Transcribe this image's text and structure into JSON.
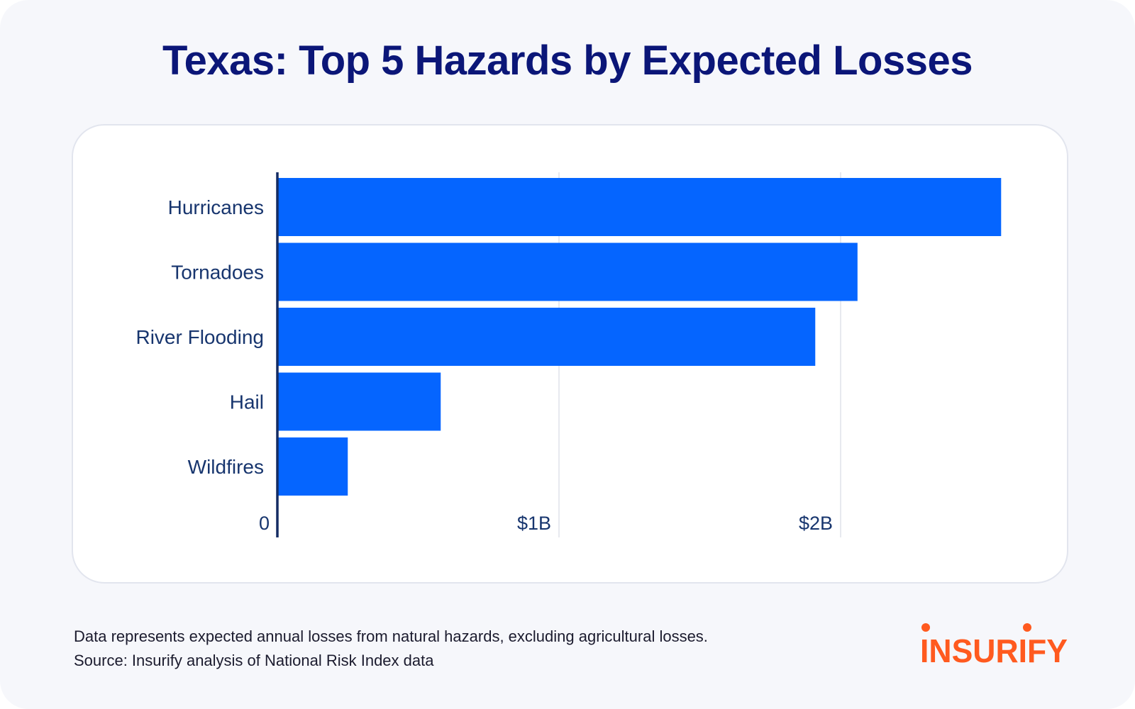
{
  "chart_data": {
    "type": "bar",
    "orientation": "horizontal",
    "title": "Texas: Top 5 Hazards by Expected Losses",
    "categories": [
      "Hurricanes",
      "Tornadoes",
      "River Flooding",
      "Hail",
      "Wildfires"
    ],
    "values": [
      2.57,
      2.06,
      1.91,
      0.58,
      0.25
    ],
    "value_unit": "billion USD",
    "xlim": [
      0,
      2.6
    ],
    "xticks": [
      0,
      1,
      2
    ],
    "xtick_labels": [
      "0",
      "$1B",
      "$2B"
    ],
    "grid": true,
    "bar_color": "#0565ff"
  },
  "footnote": {
    "line1": "Data represents expected annual losses from natural hazards, excluding agricultural losses.",
    "line2": "Source: Insurify analysis of National Risk Index data"
  },
  "brand": {
    "name": "INSURIFY",
    "color": "#ff5a1f"
  },
  "colors": {
    "title": "#0b1678",
    "label": "#17356e",
    "background": "#f6f7fb"
  }
}
